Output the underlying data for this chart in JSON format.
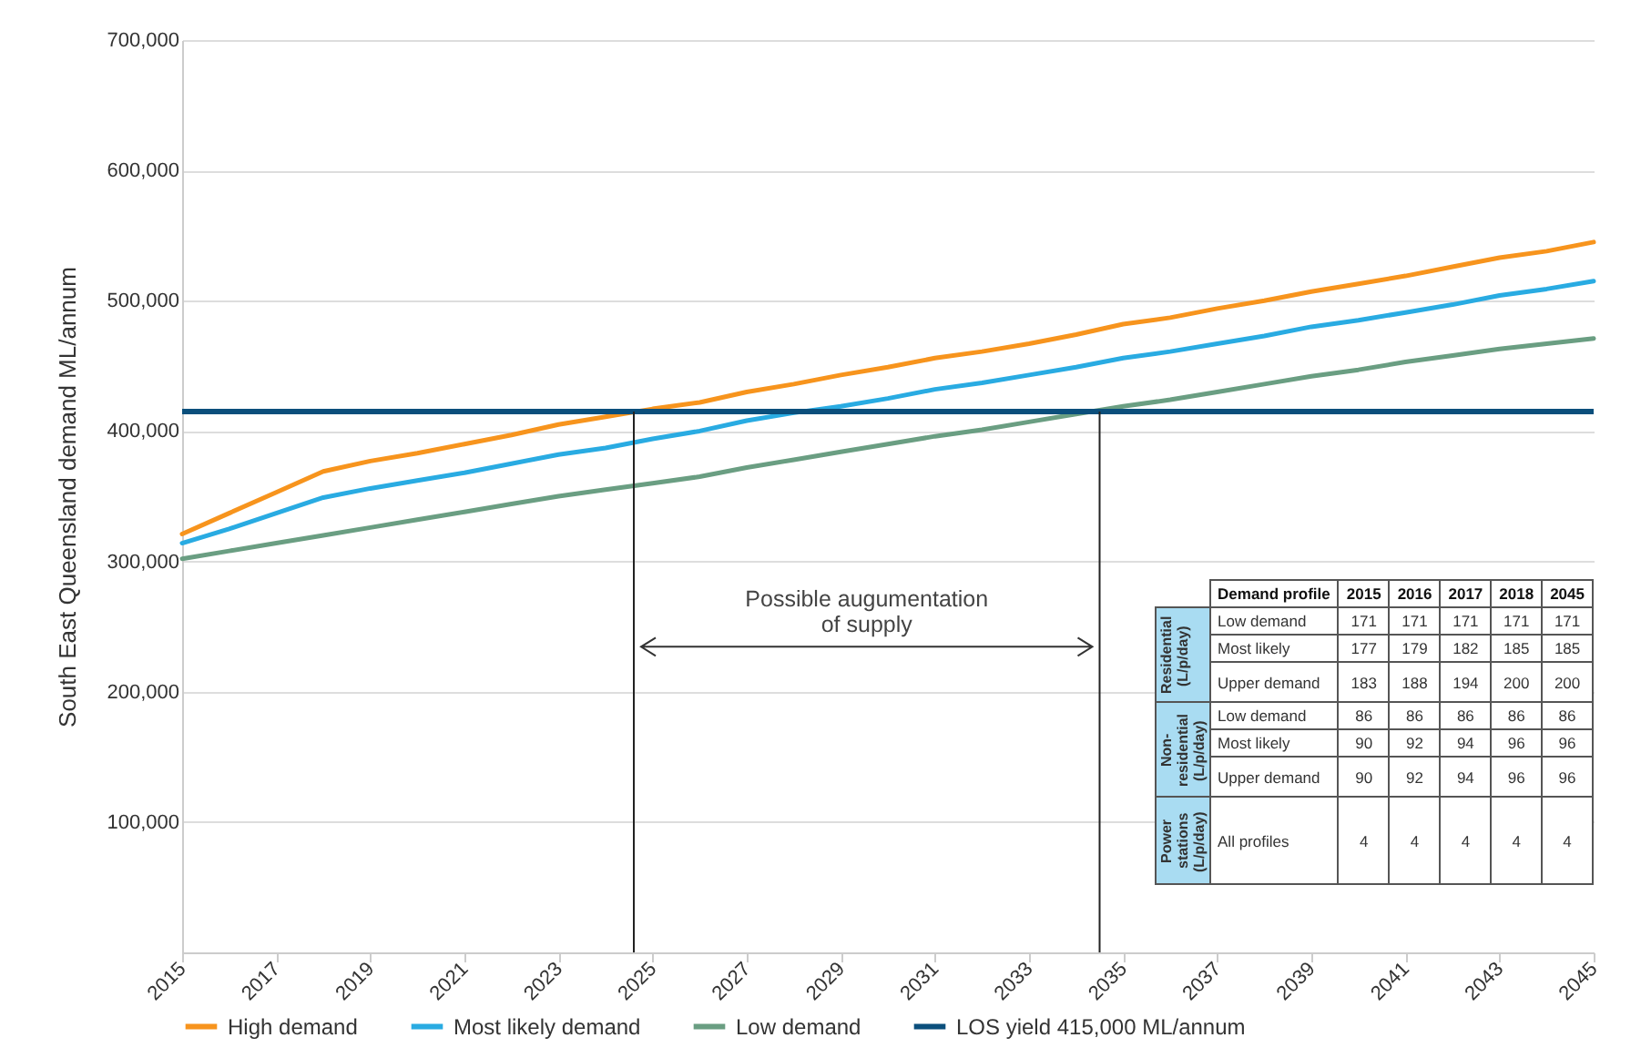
{
  "chart_data": [
    {
      "type": "line",
      "ylabel": "South East Queensland demand ML/annum",
      "x": [
        2015,
        2016,
        2017,
        2018,
        2019,
        2020,
        2021,
        2022,
        2023,
        2024,
        2025,
        2026,
        2027,
        2028,
        2029,
        2030,
        2031,
        2032,
        2033,
        2034,
        2035,
        2036,
        2037,
        2038,
        2039,
        2040,
        2041,
        2042,
        2043,
        2044,
        2045
      ],
      "series": [
        {
          "name": "High demand",
          "color": "#f7941d",
          "values": [
            321000,
            337000,
            353000,
            369000,
            377000,
            383000,
            390000,
            397000,
            405000,
            411000,
            417000,
            422000,
            430000,
            436000,
            443000,
            449000,
            456000,
            461000,
            467000,
            474000,
            482000,
            487000,
            494000,
            500000,
            507000,
            513000,
            519000,
            526000,
            533000,
            538000,
            545000
          ]
        },
        {
          "name": "Most likely demand",
          "color": "#29abe2",
          "values": [
            314000,
            325000,
            337000,
            349000,
            356000,
            362000,
            368000,
            375000,
            382000,
            387000,
            394000,
            400000,
            408000,
            414000,
            419000,
            425000,
            432000,
            437000,
            443000,
            449000,
            456000,
            461000,
            467000,
            473000,
            480000,
            485000,
            491000,
            497000,
            504000,
            509000,
            515000
          ]
        },
        {
          "name": "Low demand",
          "color": "#6a9e82",
          "values": [
            302000,
            308000,
            314000,
            320000,
            326000,
            332000,
            338000,
            344000,
            350000,
            355000,
            360000,
            365000,
            372000,
            378000,
            384000,
            390000,
            396000,
            401000,
            407000,
            413000,
            419000,
            424000,
            430000,
            436000,
            442000,
            447000,
            453000,
            458000,
            463000,
            467000,
            471000
          ]
        }
      ],
      "ref_lines": [
        {
          "axis": "y",
          "value": 415000,
          "label": "LOS yield 415,000 ML/annum",
          "color": "#0b4f7c"
        },
        {
          "axis": "x",
          "value": 2024.6,
          "color": "#222222"
        },
        {
          "axis": "x",
          "value": 2034.5,
          "color": "#222222"
        }
      ],
      "annotations": [
        "Possible augumentation\nof supply"
      ],
      "xlim": [
        2015,
        2045
      ],
      "xticks": [
        2015,
        2017,
        2019,
        2021,
        2023,
        2025,
        2027,
        2029,
        2031,
        2033,
        2035,
        2037,
        2039,
        2041,
        2043,
        2045
      ],
      "ylim": [
        0,
        700000
      ],
      "yticks": [
        {
          "value": 0,
          "label": null
        },
        {
          "value": 100000,
          "label": "100,000"
        },
        {
          "value": 200000,
          "label": "200,000"
        },
        {
          "value": 300000,
          "label": "300,000"
        },
        {
          "value": 400000,
          "label": "400,000"
        },
        {
          "value": 500000,
          "label": "500,000"
        },
        {
          "value": 600000,
          "label": "600,000"
        },
        {
          "value": 700000,
          "label": "700,000"
        }
      ],
      "grid": "y",
      "legend": "bottom"
    },
    {
      "type": "heatmap",
      "data_labels": true,
      "ylabel": "Demand profile",
      "categories": [
        "2015",
        "2016",
        "2017",
        "2018",
        "2045"
      ],
      "y_categories": [
        "Low demand",
        "Most likely",
        "Upper demand",
        "Low demand",
        "Most likely",
        "Upper demand",
        "All profiles"
      ],
      "cells": [
        [
          171,
          171,
          171,
          171,
          171
        ],
        [
          177,
          179,
          182,
          185,
          185
        ],
        [
          183,
          188,
          194,
          200,
          200
        ],
        [
          86,
          86,
          86,
          86,
          86
        ],
        [
          90,
          92,
          94,
          96,
          96
        ],
        [
          90,
          92,
          94,
          96,
          96
        ],
        [
          4,
          4,
          4,
          4,
          4
        ]
      ],
      "annotations": [
        "Residential (L/p/day)",
        "Non-residential (L/p/day)",
        "Power stations (L/p/day)"
      ]
    }
  ]
}
